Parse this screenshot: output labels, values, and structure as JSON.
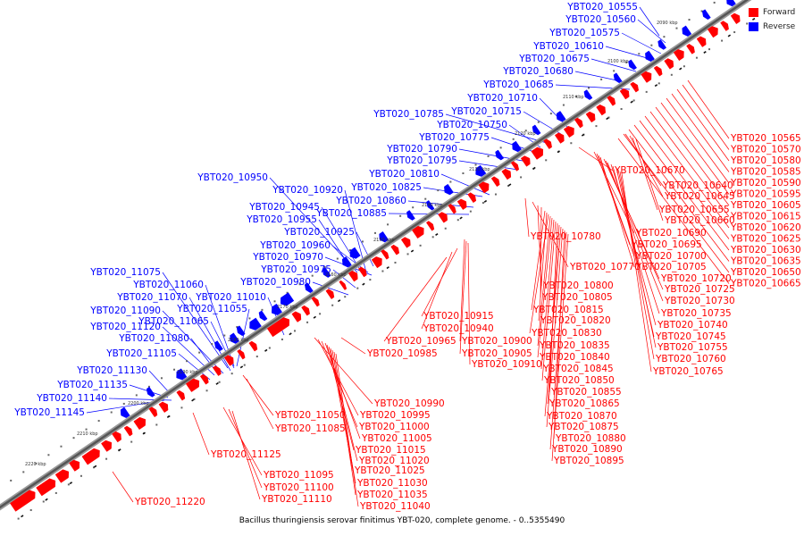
{
  "legend": {
    "items": [
      {
        "label": "Forward",
        "color": "#ff0000"
      },
      {
        "label": "Reverse",
        "color": "#0000ff"
      }
    ]
  },
  "caption": "Bacillus thuringiensis serovar finitimus YBT-020, complete genome. - 0..5355490",
  "colors": {
    "forward": "#ff0000",
    "reverse": "#0000ff",
    "backbone": "#555555"
  },
  "ticks": [
    "2090 kbp",
    "2100 kbp",
    "2110 kbp",
    "2120 kbp",
    "2130 kbp",
    "2140 kbp",
    "2150 kbp",
    "2160 kbp",
    "2170 kbp",
    "2180 kbp",
    "2190 kbp",
    "2200 kbp",
    "2210 kbp",
    "2220 kbp"
  ],
  "reverse_labels": [
    "YBT020_10555",
    "YBT020_10560",
    "YBT020_10575",
    "YBT020_10610",
    "YBT020_10675",
    "YBT020_10680",
    "YBT020_10685",
    "YBT020_10710",
    "YBT020_10715",
    "YBT020_10785",
    "YBT020_10750",
    "YBT020_10775",
    "YBT020_10790",
    "YBT020_10795",
    "YBT020_10810",
    "YBT020_10825",
    "YBT020_10950",
    "YBT020_10920",
    "YBT020_10860",
    "YBT020_10945",
    "YBT020_10885",
    "YBT020_10955",
    "YBT020_10925",
    "YBT020_10960",
    "YBT020_10970",
    "YBT020_10975",
    "YBT020_10980",
    "YBT020_11075",
    "YBT020_11060",
    "YBT020_11070",
    "YBT020_11010",
    "YBT020_11090",
    "YBT020_11055",
    "YBT020_11065",
    "YBT020_11120",
    "YBT020_11080",
    "YBT020_11105",
    "YBT020_11130",
    "YBT020_11135",
    "YBT020_11140",
    "YBT020_11145"
  ],
  "forward_labels_right": [
    "YBT020_10565",
    "YBT020_10570",
    "YBT020_10580",
    "YBT020_10585",
    "YBT020_10590",
    "YBT020_10595",
    "YBT020_10605",
    "YBT020_10615",
    "YBT020_10620",
    "YBT020_10625",
    "YBT020_10630",
    "YBT020_10635",
    "YBT020_10650",
    "YBT020_10665"
  ],
  "forward_labels_mid": [
    "YBT020_10670",
    "YBT020_10640",
    "YBT020_10645",
    "YBT020_10655",
    "YBT020_10660",
    "YBT020_10690",
    "YBT020_10695",
    "YBT020_10700",
    "YBT020_10705",
    "YBT020_10720",
    "YBT020_10725",
    "YBT020_10730",
    "YBT020_10735",
    "YBT020_10740",
    "YBT020_10745",
    "YBT020_10755",
    "YBT020_10760",
    "YBT020_10765"
  ],
  "forward_labels_c": [
    "YBT020_10780",
    "YBT020_10770",
    "YBT020_10800",
    "YBT020_10805",
    "YBT020_10815",
    "YBT020_10820",
    "YBT020_10830",
    "YBT020_10835",
    "YBT020_10840",
    "YBT020_10845",
    "YBT020_10850",
    "YBT020_10855",
    "YBT020_10865",
    "YBT020_10870",
    "YBT020_10875",
    "YBT020_10880",
    "YBT020_10890",
    "YBT020_10895"
  ],
  "forward_labels_d": [
    "YBT020_10915",
    "YBT020_10940",
    "YBT020_10965",
    "YBT020_10900",
    "YBT020_10905",
    "YBT020_10910",
    "YBT020_10985"
  ],
  "forward_labels_e": [
    "YBT020_10990",
    "YBT020_10995",
    "YBT020_11000",
    "YBT020_11005",
    "YBT020_11015",
    "YBT020_11020",
    "YBT020_11025",
    "YBT020_11030",
    "YBT020_11035",
    "YBT020_11040"
  ],
  "forward_labels_f": [
    "YBT020_11050",
    "YBT020_11085",
    "YBT020_11125",
    "YBT020_11095",
    "YBT020_11100",
    "YBT020_11110",
    "YBT020_11220"
  ]
}
